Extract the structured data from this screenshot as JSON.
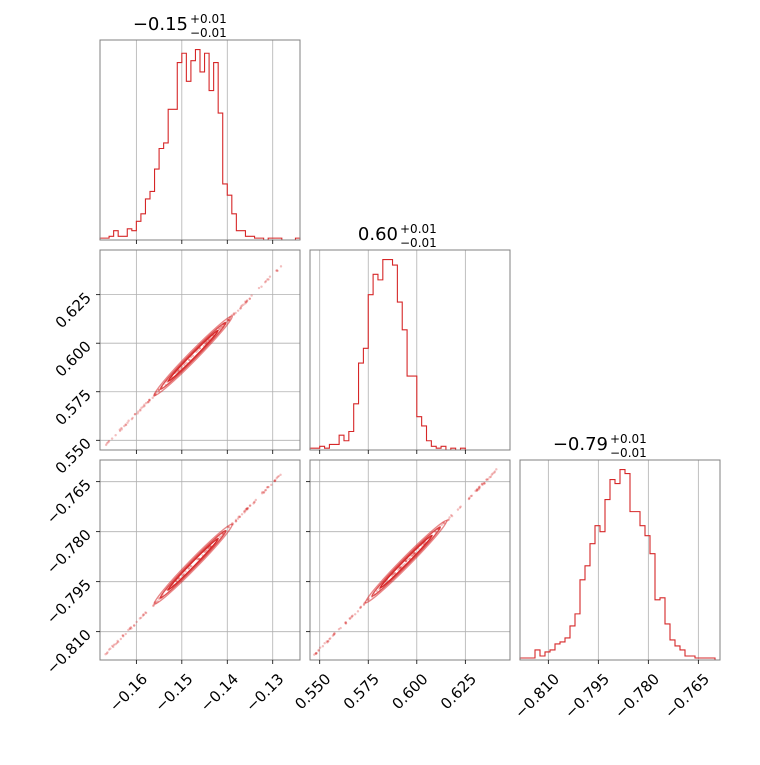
{
  "chart_data": {
    "type": "corner",
    "color": "#d62728",
    "panels": [
      {
        "id": "p0",
        "kind": "hist",
        "row": 0,
        "col": 0,
        "title": {
          "main": "−0.15",
          "plus": "+0.01",
          "minus": "−0.01"
        },
        "xlim": [
          -0.168,
          -0.124
        ],
        "xticks": [
          -0.16,
          -0.15,
          -0.14,
          -0.13
        ],
        "xticklabels": [
          "−0.16",
          "−0.15",
          "−0.14",
          "−0.13"
        ],
        "show_xticklabels": false,
        "bins_start": -0.168,
        "bin_width": 0.001,
        "counts": [
          1,
          1,
          2,
          5,
          2,
          2,
          6,
          5,
          10,
          14,
          22,
          26,
          38,
          49,
          52,
          70,
          70,
          95,
          100,
          85,
          96,
          102,
          90,
          100,
          80,
          95,
          68,
          30,
          24,
          14,
          5,
          5,
          2,
          2,
          1,
          1,
          0,
          1,
          1,
          1,
          0,
          0,
          0,
          1
        ]
      },
      {
        "id": "p1",
        "kind": "scatter",
        "row": 1,
        "col": 0,
        "xlim": [
          -0.168,
          -0.124
        ],
        "ylim": [
          0.545,
          0.648
        ],
        "xticks": [
          -0.16,
          -0.15,
          -0.14,
          -0.13
        ],
        "yticks": [
          0.55,
          0.575,
          0.6,
          0.625
        ],
        "yticklabels": [
          "0.550",
          "0.575",
          "0.600",
          "0.625"
        ],
        "show_xticklabels": false,
        "show_yticklabels": true,
        "x_range": [
          -0.167,
          -0.128
        ],
        "y_range": [
          0.547,
          0.64
        ]
      },
      {
        "id": "p2",
        "kind": "scatter",
        "row": 2,
        "col": 0,
        "xlim": [
          -0.168,
          -0.124
        ],
        "ylim": [
          -0.8185,
          -0.7585
        ],
        "xticks": [
          -0.16,
          -0.15,
          -0.14,
          -0.13
        ],
        "xticklabels": [
          "−0.16",
          "−0.15",
          "−0.14",
          "−0.13"
        ],
        "yticks": [
          -0.81,
          -0.795,
          -0.78,
          -0.765
        ],
        "yticklabels": [
          "−0.810",
          "−0.795",
          "−0.780",
          "−0.765"
        ],
        "show_xticklabels": true,
        "show_yticklabels": true,
        "x_range": [
          -0.167,
          -0.128
        ],
        "y_range": [
          -0.817,
          -0.7625
        ]
      },
      {
        "id": "p3",
        "kind": "hist",
        "row": 1,
        "col": 1,
        "title": {
          "main": "0.60",
          "plus": "+0.01",
          "minus": "−0.01"
        },
        "xlim": [
          0.545,
          0.648
        ],
        "xticks": [
          0.55,
          0.575,
          0.6,
          0.625
        ],
        "show_xticklabels": false,
        "bins_start": 0.545,
        "bin_width": 0.0025,
        "counts": [
          1,
          1,
          2,
          1,
          3,
          3,
          8,
          5,
          10,
          25,
          47,
          55,
          84,
          95,
          92,
          103,
          103,
          100,
          80,
          65,
          40,
          40,
          18,
          13,
          5,
          2,
          1,
          2,
          0,
          1,
          0,
          1
        ]
      },
      {
        "id": "p4",
        "kind": "scatter",
        "row": 2,
        "col": 1,
        "xlim": [
          0.545,
          0.648
        ],
        "ylim": [
          -0.8185,
          -0.7585
        ],
        "xticks": [
          0.55,
          0.575,
          0.6,
          0.625
        ],
        "xticklabels": [
          "0.550",
          "0.575",
          "0.600",
          "0.625"
        ],
        "yticks": [
          -0.81,
          -0.795,
          -0.78,
          -0.765
        ],
        "show_xticklabels": true,
        "show_yticklabels": false,
        "x_range": [
          0.547,
          0.642
        ],
        "y_range": [
          -0.817,
          -0.761
        ]
      },
      {
        "id": "p5",
        "kind": "hist",
        "row": 2,
        "col": 2,
        "title": {
          "main": "−0.79",
          "plus": "+0.01",
          "minus": "−0.01"
        },
        "xlim": [
          -0.8185,
          -0.7585
        ],
        "xticks": [
          -0.81,
          -0.795,
          -0.78,
          -0.765
        ],
        "xticklabels": [
          "−0.810",
          "−0.795",
          "−0.780",
          "−0.765"
        ],
        "show_xticklabels": true,
        "bins_start": -0.8185,
        "bin_width": 0.0015,
        "counts": [
          1,
          1,
          1,
          5,
          2,
          4,
          5,
          8,
          9,
          11,
          17,
          23,
          40,
          47,
          58,
          67,
          64,
          80,
          90,
          88,
          95,
          93,
          74,
          74,
          67,
          62,
          53,
          30,
          31,
          18,
          10,
          7,
          5,
          2,
          2,
          1,
          1,
          1,
          1,
          0
        ]
      }
    ]
  }
}
